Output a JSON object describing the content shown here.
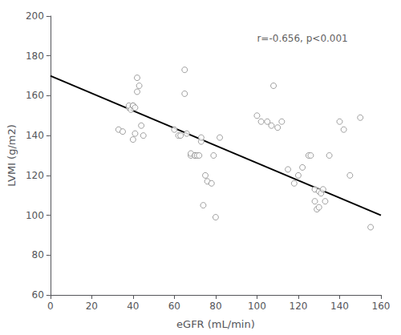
{
  "chart_data": {
    "type": "scatter",
    "xlabel": "eGFR (mL/min)",
    "ylabel": "LVMI (g/m2)",
    "xlim": [
      0,
      160
    ],
    "ylim": [
      60,
      200
    ],
    "xticks": [
      0,
      20,
      40,
      60,
      80,
      100,
      120,
      140,
      160
    ],
    "yticks": [
      60,
      80,
      100,
      120,
      140,
      160,
      180,
      200
    ],
    "grid": false,
    "series": [
      {
        "type": "scatter",
        "marker": "circle",
        "color": "#888888",
        "x": [
          33,
          35,
          38,
          38,
          39,
          40,
          40,
          40,
          41,
          41,
          42,
          42,
          43,
          44,
          45,
          60,
          62,
          63,
          65,
          65,
          66,
          68,
          68,
          70,
          70,
          71,
          72,
          73,
          73,
          74,
          75,
          76,
          78,
          79,
          80,
          82,
          100,
          102,
          105,
          107,
          108,
          110,
          112,
          115,
          118,
          120,
          122,
          125,
          126,
          128,
          128,
          129,
          130,
          130,
          131,
          132,
          133,
          135,
          140,
          142,
          145,
          150,
          155
        ],
        "values": [
          143,
          142,
          154,
          155,
          153,
          155,
          155,
          138,
          154,
          141,
          162,
          169,
          165,
          145,
          140,
          143,
          140,
          140,
          173,
          161,
          141,
          130,
          131,
          130,
          130,
          130,
          130,
          137,
          139,
          105,
          120,
          117,
          116,
          130,
          99,
          139,
          150,
          147,
          147,
          145,
          165,
          144,
          147,
          123,
          116,
          120,
          124,
          130,
          130,
          107,
          113,
          103,
          104,
          112,
          111,
          113,
          107,
          130,
          147,
          143,
          120,
          149,
          94
        ]
      },
      {
        "type": "line",
        "color": "black",
        "x": [
          0,
          160
        ],
        "values": [
          170,
          100
        ]
      }
    ],
    "annotations": [
      {
        "text": "r=-0.656, p<0.001",
        "x": 100,
        "y": 191
      }
    ]
  }
}
